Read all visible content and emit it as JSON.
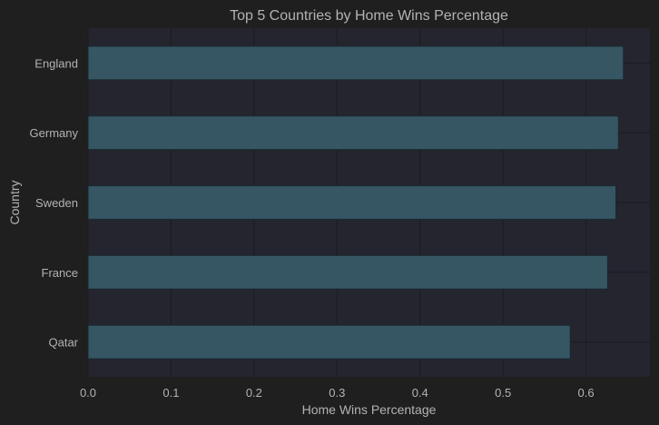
{
  "chart_data": {
    "type": "bar",
    "orientation": "horizontal",
    "title": "Top 5 Countries by Home Wins Percentage",
    "xlabel": "Home Wins Percentage",
    "ylabel": "Country",
    "categories": [
      "England",
      "Germany",
      "Sweden",
      "France",
      "Qatar"
    ],
    "values": [
      0.645,
      0.639,
      0.636,
      0.626,
      0.581
    ],
    "xlim": [
      0,
      0.677
    ],
    "xticks": [
      "0.0",
      "0.1",
      "0.2",
      "0.3",
      "0.4",
      "0.5",
      "0.6"
    ],
    "xtick_values": [
      0.0,
      0.1,
      0.2,
      0.3,
      0.4,
      0.5,
      0.6
    ],
    "grid": true,
    "colors": {
      "background": "#1f1f1f",
      "plot_background": "#24252f",
      "bar_fill": "#375663",
      "bar_edge": "#1a2a30",
      "grid": "#1a1b22",
      "text": "#b3b3b3"
    }
  }
}
